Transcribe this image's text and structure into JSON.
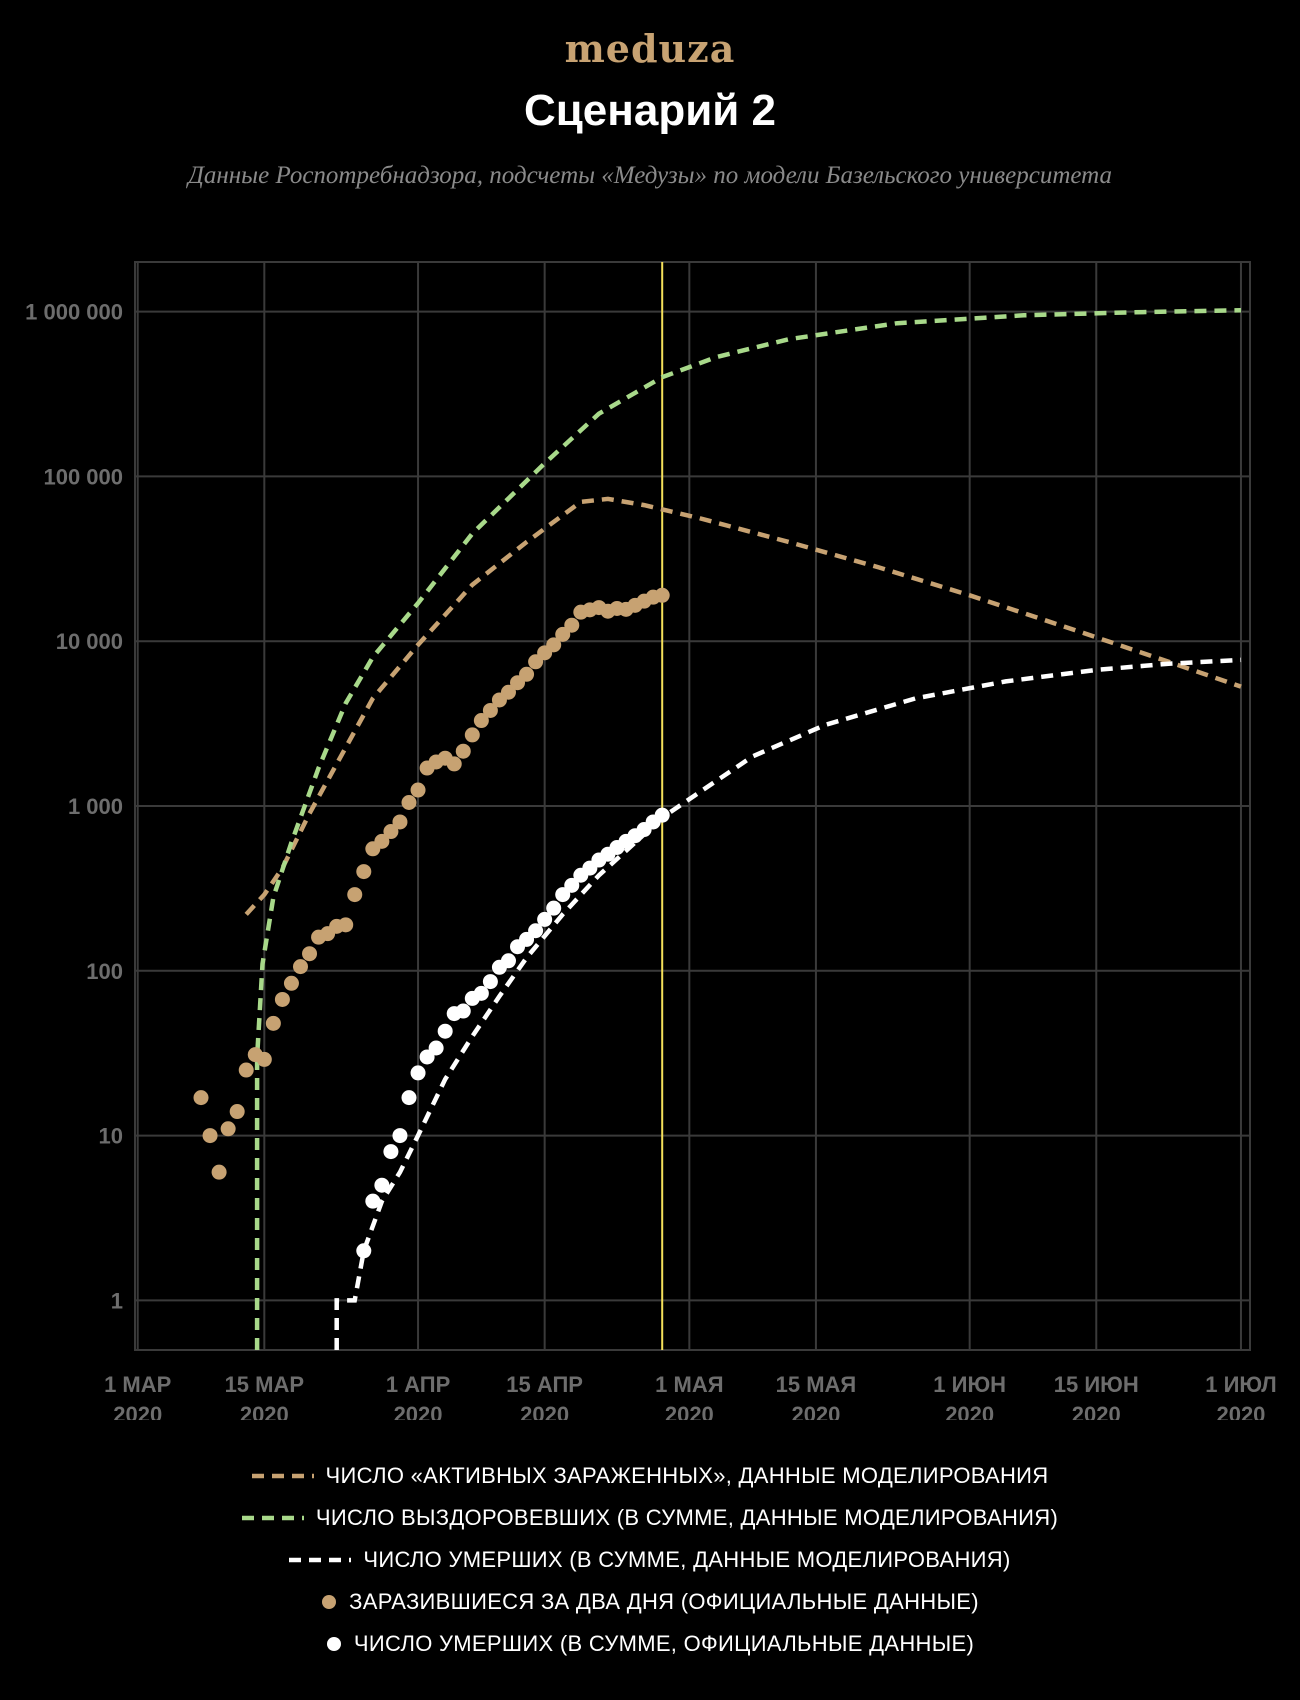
{
  "logo": "meduza",
  "title": "Сценарий 2",
  "subtitle": "Данные Роспотребнадзора, подсчеты «Медузы» по модели Базельского университета",
  "chart_data": {
    "type": "line",
    "yscale": "log",
    "ylim": [
      0.5,
      2000000
    ],
    "xlim": [
      0,
      123
    ],
    "grid": true,
    "legend_position": "bottom",
    "y_ticks": [
      {
        "value": 1,
        "label": "1"
      },
      {
        "value": 10,
        "label": "10"
      },
      {
        "value": 100,
        "label": "100"
      },
      {
        "value": 1000,
        "label": "1 000"
      },
      {
        "value": 10000,
        "label": "10 000"
      },
      {
        "value": 100000,
        "label": "100 000"
      },
      {
        "value": 1000000,
        "label": "1 000 000"
      }
    ],
    "x_ticks": [
      {
        "value": 0,
        "line1": "1 МАР",
        "line2": "2020"
      },
      {
        "value": 14,
        "line1": "15 МАР",
        "line2": "2020"
      },
      {
        "value": 31,
        "line1": "1 АПР",
        "line2": "2020"
      },
      {
        "value": 45,
        "line1": "15 АПР",
        "line2": "2020"
      },
      {
        "value": 61,
        "line1": "1 МАЯ",
        "line2": "2020"
      },
      {
        "value": 75,
        "line1": "15 МАЯ",
        "line2": "2020"
      },
      {
        "value": 92,
        "line1": "1 ИЮН",
        "line2": "2020"
      },
      {
        "value": 106,
        "line1": "15 ИЮН",
        "line2": "2020"
      },
      {
        "value": 122,
        "line1": "1 ИЮЛ",
        "line2": "2020"
      }
    ],
    "today_marker": {
      "x": 58,
      "color": "#f5e05a"
    },
    "series": [
      {
        "name": "ЧИСЛО «АКТИВНЫХ ЗАРАЖЕННЫХ», ДАННЫЕ МОДЕЛИРОВАНИЯ",
        "style": "dashed-line",
        "color": "#c7a272",
        "points": [
          [
            12,
            220
          ],
          [
            14,
            290
          ],
          [
            16,
            420
          ],
          [
            19,
            900
          ],
          [
            22,
            1800
          ],
          [
            26,
            4500
          ],
          [
            31,
            9500
          ],
          [
            37,
            22000
          ],
          [
            43,
            40000
          ],
          [
            49,
            70000
          ],
          [
            52,
            73000
          ],
          [
            56,
            67000
          ],
          [
            62,
            56000
          ],
          [
            72,
            40000
          ],
          [
            82,
            28000
          ],
          [
            92,
            19000
          ],
          [
            104,
            11500
          ],
          [
            114,
            7500
          ],
          [
            122,
            5300
          ]
        ]
      },
      {
        "name": "ЧИСЛО ВЫЗДОРОВЕВШИХ (В СУММЕ, ДАННЫЕ МОДЕЛИРОВАНИЯ)",
        "style": "dashed-line",
        "color": "#a8d98a",
        "points": [
          [
            13.2,
            0.5
          ],
          [
            13.2,
            30
          ],
          [
            13.8,
            110
          ],
          [
            15,
            280
          ],
          [
            17,
            600
          ],
          [
            20,
            1700
          ],
          [
            23,
            4200
          ],
          [
            26,
            8000
          ],
          [
            31,
            17000
          ],
          [
            37,
            45000
          ],
          [
            45,
            120000
          ],
          [
            51,
            240000
          ],
          [
            58,
            400000
          ],
          [
            64,
            530000
          ],
          [
            72,
            680000
          ],
          [
            84,
            850000
          ],
          [
            98,
            950000
          ],
          [
            110,
            990000
          ],
          [
            122,
            1020000
          ]
        ]
      },
      {
        "name": "ЧИСЛО УМЕРШИХ (В СУММЕ, ДАННЫЕ МОДЕЛИРОВАНИЯ)",
        "style": "dashed-line",
        "color": "#ffffff",
        "points": [
          [
            22,
            0.5
          ],
          [
            22,
            1
          ],
          [
            24,
            1
          ],
          [
            25,
            2
          ],
          [
            27,
            4
          ],
          [
            29,
            6
          ],
          [
            31,
            10
          ],
          [
            34,
            22
          ],
          [
            37,
            40
          ],
          [
            40,
            70
          ],
          [
            43,
            120
          ],
          [
            47,
            220
          ],
          [
            51,
            380
          ],
          [
            55,
            600
          ],
          [
            58,
            850
          ],
          [
            62,
            1200
          ],
          [
            68,
            2000
          ],
          [
            76,
            3100
          ],
          [
            86,
            4500
          ],
          [
            96,
            5700
          ],
          [
            106,
            6700
          ],
          [
            114,
            7300
          ],
          [
            122,
            7700
          ]
        ]
      },
      {
        "name": "ЗАРАЗИВШИЕСЯ ЗА ДВА ДНЯ (ОФИЦИАЛЬНЫЕ ДАННЫЕ)",
        "style": "dots",
        "color": "#c7a272",
        "points": [
          [
            7,
            17
          ],
          [
            8,
            10
          ],
          [
            9,
            6
          ],
          [
            10,
            11
          ],
          [
            11,
            14
          ],
          [
            12,
            25
          ],
          [
            13,
            31
          ],
          [
            14,
            29
          ],
          [
            15,
            48
          ],
          [
            16,
            67
          ],
          [
            17,
            84
          ],
          [
            18,
            106
          ],
          [
            19,
            127
          ],
          [
            20,
            160
          ],
          [
            21,
            168
          ],
          [
            22,
            186
          ],
          [
            23,
            190
          ],
          [
            24,
            290
          ],
          [
            25,
            400
          ],
          [
            26,
            550
          ],
          [
            27,
            610
          ],
          [
            28,
            700
          ],
          [
            29,
            800
          ],
          [
            30,
            1050
          ],
          [
            31,
            1250
          ],
          [
            32,
            1700
          ],
          [
            33,
            1850
          ],
          [
            34,
            1950
          ],
          [
            35,
            1800
          ],
          [
            36,
            2150
          ],
          [
            37,
            2700
          ],
          [
            38,
            3300
          ],
          [
            39,
            3800
          ],
          [
            40,
            4400
          ],
          [
            41,
            4900
          ],
          [
            42,
            5600
          ],
          [
            43,
            6300
          ],
          [
            44,
            7500
          ],
          [
            45,
            8500
          ],
          [
            46,
            9500
          ],
          [
            47,
            11000
          ],
          [
            48,
            12500
          ],
          [
            49,
            15000
          ],
          [
            50,
            15500
          ],
          [
            51,
            16000
          ],
          [
            52,
            15200
          ],
          [
            53,
            15800
          ],
          [
            54,
            15600
          ],
          [
            55,
            16500
          ],
          [
            56,
            17500
          ],
          [
            57,
            18500
          ],
          [
            58,
            19000
          ]
        ]
      },
      {
        "name": "ЧИСЛО УМЕРШИХ (В СУММЕ, ОФИЦИАЛЬНЫЕ ДАННЫЕ)",
        "style": "dots",
        "color": "#ffffff",
        "points": [
          [
            25,
            2
          ],
          [
            26,
            4
          ],
          [
            27,
            5
          ],
          [
            28,
            8
          ],
          [
            29,
            10
          ],
          [
            30,
            17
          ],
          [
            31,
            24
          ],
          [
            32,
            30
          ],
          [
            33,
            34
          ],
          [
            34,
            43
          ],
          [
            35,
            55
          ],
          [
            36,
            57
          ],
          [
            37,
            68
          ],
          [
            38,
            73
          ],
          [
            39,
            86
          ],
          [
            40,
            105
          ],
          [
            41,
            115
          ],
          [
            42,
            140
          ],
          [
            43,
            155
          ],
          [
            44,
            175
          ],
          [
            45,
            205
          ],
          [
            46,
            240
          ],
          [
            47,
            290
          ],
          [
            48,
            330
          ],
          [
            49,
            380
          ],
          [
            50,
            420
          ],
          [
            51,
            470
          ],
          [
            52,
            510
          ],
          [
            53,
            560
          ],
          [
            54,
            610
          ],
          [
            55,
            660
          ],
          [
            56,
            720
          ],
          [
            57,
            800
          ],
          [
            58,
            880
          ]
        ]
      }
    ]
  }
}
